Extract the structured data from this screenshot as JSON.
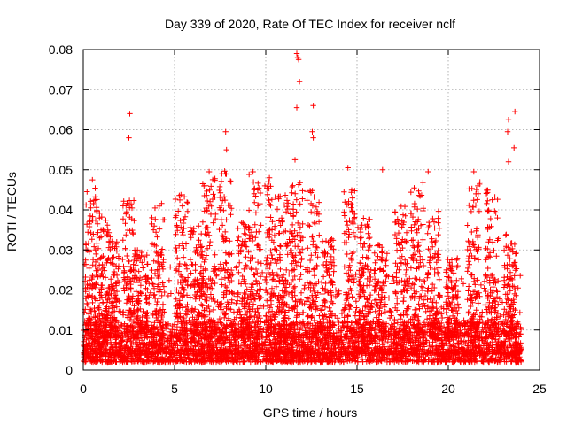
{
  "chart_data": {
    "type": "scatter",
    "title": "Day 339 of 2020, Rate Of TEC Index for receiver nclf",
    "xlabel": "GPS time / hours",
    "ylabel": "ROTI / TECUs",
    "xlim": [
      0,
      25
    ],
    "ylim": [
      0,
      0.08
    ],
    "xticks": [
      0,
      5,
      10,
      15,
      20,
      25
    ],
    "yticks": [
      0,
      0.01,
      0.02,
      0.03,
      0.04,
      0.05,
      0.06,
      0.07,
      0.08
    ],
    "xtick_labels": [
      "0",
      "5",
      "10",
      "15",
      "20",
      "25"
    ],
    "ytick_labels": [
      "0",
      "0.01",
      "0.02",
      "0.03",
      "0.04",
      "0.05",
      "0.06",
      "0.07",
      "0.08"
    ],
    "grid": true,
    "marker": "+",
    "color": "#ff0000",
    "series": [
      {
        "name": "ROTI",
        "x_range": [
          0,
          24
        ],
        "baseline_range": [
          0.002,
          0.012
        ],
        "notable_points": [
          {
            "x": 2.55,
            "y": 0.064
          },
          {
            "x": 2.5,
            "y": 0.058
          },
          {
            "x": 7.8,
            "y": 0.0595
          },
          {
            "x": 7.85,
            "y": 0.055
          },
          {
            "x": 11.7,
            "y": 0.079
          },
          {
            "x": 11.75,
            "y": 0.078
          },
          {
            "x": 11.8,
            "y": 0.0775
          },
          {
            "x": 11.85,
            "y": 0.072
          },
          {
            "x": 11.7,
            "y": 0.0655
          },
          {
            "x": 12.6,
            "y": 0.066
          },
          {
            "x": 12.55,
            "y": 0.0595
          },
          {
            "x": 12.6,
            "y": 0.058
          },
          {
            "x": 11.6,
            "y": 0.0525
          },
          {
            "x": 14.5,
            "y": 0.0505
          },
          {
            "x": 16.4,
            "y": 0.05
          },
          {
            "x": 23.3,
            "y": 0.0625
          },
          {
            "x": 23.65,
            "y": 0.0645
          },
          {
            "x": 23.25,
            "y": 0.0595
          },
          {
            "x": 23.6,
            "y": 0.0555
          },
          {
            "x": 23.3,
            "y": 0.052
          },
          {
            "x": 6.9,
            "y": 0.0495
          },
          {
            "x": 9.3,
            "y": 0.0495
          },
          {
            "x": 18.9,
            "y": 0.0495
          },
          {
            "x": 21.4,
            "y": 0.0495
          },
          {
            "x": 0.5,
            "y": 0.0475
          },
          {
            "x": 10.2,
            "y": 0.048
          }
        ],
        "activity_bursts": [
          {
            "center": 0.4,
            "peak": 0.046
          },
          {
            "center": 1.0,
            "peak": 0.04
          },
          {
            "center": 1.6,
            "peak": 0.035
          },
          {
            "center": 2.5,
            "peak": 0.044
          },
          {
            "center": 3.2,
            "peak": 0.03
          },
          {
            "center": 4.1,
            "peak": 0.042
          },
          {
            "center": 5.4,
            "peak": 0.045
          },
          {
            "center": 6.2,
            "peak": 0.036
          },
          {
            "center": 6.9,
            "peak": 0.048
          },
          {
            "center": 7.8,
            "peak": 0.05
          },
          {
            "center": 8.8,
            "peak": 0.037
          },
          {
            "center": 9.4,
            "peak": 0.049
          },
          {
            "center": 10.3,
            "peak": 0.047
          },
          {
            "center": 11.0,
            "peak": 0.044
          },
          {
            "center": 11.7,
            "peak": 0.047
          },
          {
            "center": 12.6,
            "peak": 0.045
          },
          {
            "center": 13.4,
            "peak": 0.033
          },
          {
            "center": 14.6,
            "peak": 0.045
          },
          {
            "center": 15.4,
            "peak": 0.038
          },
          {
            "center": 16.3,
            "peak": 0.033
          },
          {
            "center": 17.4,
            "peak": 0.042
          },
          {
            "center": 18.3,
            "peak": 0.047
          },
          {
            "center": 19.2,
            "peak": 0.04
          },
          {
            "center": 20.2,
            "peak": 0.028
          },
          {
            "center": 21.4,
            "peak": 0.047
          },
          {
            "center": 22.4,
            "peak": 0.045
          },
          {
            "center": 23.4,
            "peak": 0.034
          }
        ]
      }
    ]
  }
}
